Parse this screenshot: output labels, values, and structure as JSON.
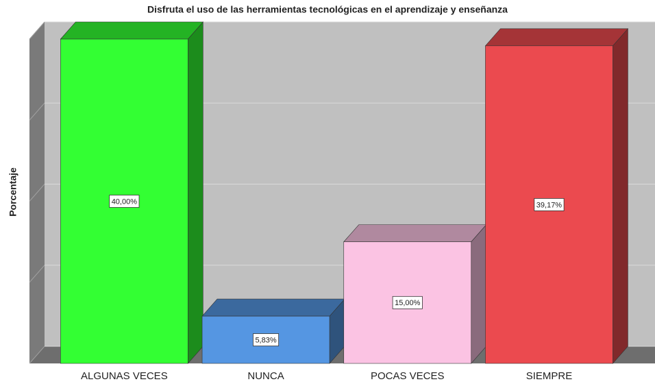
{
  "chart_data": {
    "type": "bar3d",
    "title": "Disfruta el uso de las herramientas tecnológicas en el aprendizaje y enseñanza",
    "y_label": "Porcentaje",
    "categories": [
      "ALGUNAS VECES",
      "NUNCA",
      "POCAS VECES",
      "SIEMPRE"
    ],
    "values": [
      40,
      5.83,
      15,
      39.17
    ],
    "value_labels": [
      "40,00%",
      "5,83%",
      "15,00%",
      "39,17%"
    ],
    "colors": [
      "#33ff33",
      "#5596e2",
      "#fbc3e3",
      "#eb4a4f"
    ],
    "ylim": [
      0,
      40
    ],
    "yticks": [
      0,
      10,
      20,
      30,
      40
    ],
    "grid": true
  }
}
